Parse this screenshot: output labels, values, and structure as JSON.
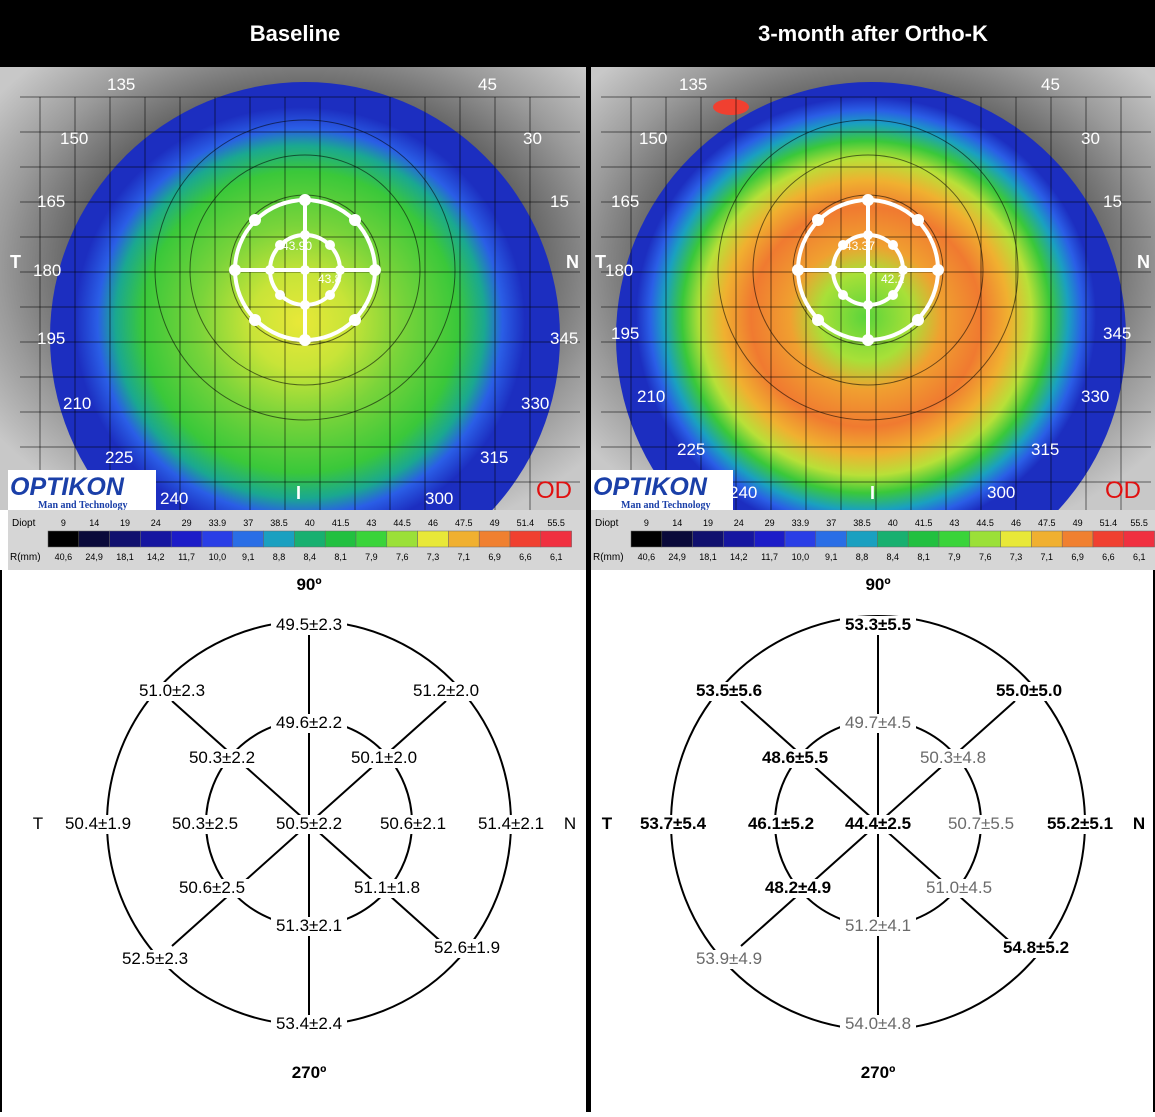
{
  "panels": [
    {
      "title": "Baseline",
      "map": {
        "axis_labels": [
          "135",
          "45",
          "150",
          "30",
          "165",
          "15",
          "180",
          "195",
          "345",
          "210",
          "330",
          "225",
          "315",
          "240",
          "300"
        ],
        "side_left": "T",
        "side_right": "N",
        "bottom_mark": "I",
        "eye": "OD",
        "logo": "OPTIKON",
        "logo_sub": "Man and Technology",
        "center_values": [
          "43.90",
          "43.8"
        ]
      },
      "scale": {
        "row1_label": "Diopt",
        "row2_label": "R(mm)",
        "diopt": [
          "9",
          "14",
          "19",
          "24",
          "29",
          "33.9",
          "37",
          "38.5",
          "40",
          "41.5",
          "43",
          "44.5",
          "46",
          "47.5",
          "49",
          "51.4",
          "55.5"
        ],
        "rmm": [
          "40,6",
          "24,9",
          "18,1",
          "14,2",
          "11,7",
          "10,0",
          "9,1",
          "8,8",
          "8,4",
          "8,1",
          "7,9",
          "7,6",
          "7,3",
          "7,1",
          "6,9",
          "6,6",
          "6,1"
        ],
        "colors": [
          "#000000",
          "#0a0a3a",
          "#10106e",
          "#1616a0",
          "#1c1cc8",
          "#2a3ee6",
          "#2a6ee6",
          "#1aa0c0",
          "#18b070",
          "#22c040",
          "#3ad43a",
          "#9be038",
          "#e8e838",
          "#f0b030",
          "#f08030",
          "#f04030",
          "#f03040"
        ]
      },
      "diagram": {
        "label_top": "90º",
        "label_bottom": "270º",
        "side_left": "T",
        "side_right": "N",
        "top": "49.5±2.3",
        "outer_ul": "51.0±2.3",
        "outer_ur": "51.2±2.0",
        "inner_top": "49.6±2.2",
        "inner_ul": "50.3±2.2",
        "inner_ur": "50.1±2.0",
        "outer_left": "50.4±1.9",
        "inner_left": "50.3±2.5",
        "center": "50.5±2.2",
        "inner_right": "50.6±2.1",
        "outer_right": "51.4±2.1",
        "inner_ll": "50.6±2.5",
        "inner_lr": "51.1±1.8",
        "inner_bottom": "51.3±2.1",
        "outer_ll": "52.5±2.3",
        "outer_lr": "52.6±1.9",
        "bottom": "53.4±2.4"
      }
    },
    {
      "title": "3-month after Ortho-K",
      "map": {
        "axis_labels": [
          "135",
          "45",
          "150",
          "30",
          "165",
          "15",
          "180",
          "195",
          "345",
          "210",
          "330",
          "225",
          "315",
          "240",
          "300"
        ],
        "side_left": "T",
        "side_right": "N",
        "bottom_mark": "I",
        "eye": "OD",
        "logo": "OPTIKON",
        "logo_sub": "Man and Technology",
        "center_values": [
          "43.37",
          "42.2"
        ]
      },
      "scale": {
        "row1_label": "Diopt",
        "row2_label": "R(mm)",
        "diopt": [
          "9",
          "14",
          "19",
          "24",
          "29",
          "33.9",
          "37",
          "38.5",
          "40",
          "41.5",
          "43",
          "44.5",
          "46",
          "47.5",
          "49",
          "51.4",
          "55.5"
        ],
        "rmm": [
          "40,6",
          "24,9",
          "18,1",
          "14,2",
          "11,7",
          "10,0",
          "9,1",
          "8,8",
          "8,4",
          "8,1",
          "7,9",
          "7,6",
          "7,3",
          "7,1",
          "6,9",
          "6,6",
          "6,1"
        ],
        "colors": [
          "#000000",
          "#0a0a3a",
          "#10106e",
          "#1616a0",
          "#1c1cc8",
          "#2a3ee6",
          "#2a6ee6",
          "#1aa0c0",
          "#18b070",
          "#22c040",
          "#3ad43a",
          "#9be038",
          "#e8e838",
          "#f0b030",
          "#f08030",
          "#f04030",
          "#f03040"
        ]
      },
      "diagram": {
        "label_top": "90º",
        "label_bottom": "270º",
        "side_left": "T",
        "side_right": "N",
        "top": "53.3±5.5",
        "outer_ul": "53.5±5.6",
        "outer_ur": "55.0±5.0",
        "inner_top": "49.7±4.5",
        "inner_ul": "48.6±5.5",
        "inner_ur": "50.3±4.8",
        "outer_left": "53.7±5.4",
        "inner_left": "46.1±5.2",
        "center": "44.4±2.5",
        "inner_right": "50.7±5.5",
        "outer_right": "55.2±5.1",
        "inner_ll": "48.2±4.9",
        "inner_lr": "51.0±4.5",
        "inner_bottom": "51.2±4.1",
        "outer_ll": "53.9±4.9",
        "outer_lr": "54.8±5.2",
        "bottom": "54.0±4.8",
        "bold_keys": [
          "top",
          "outer_ul",
          "outer_ur",
          "inner_ul",
          "outer_left",
          "inner_left",
          "center",
          "outer_right",
          "inner_ll",
          "outer_lr"
        ]
      }
    }
  ]
}
